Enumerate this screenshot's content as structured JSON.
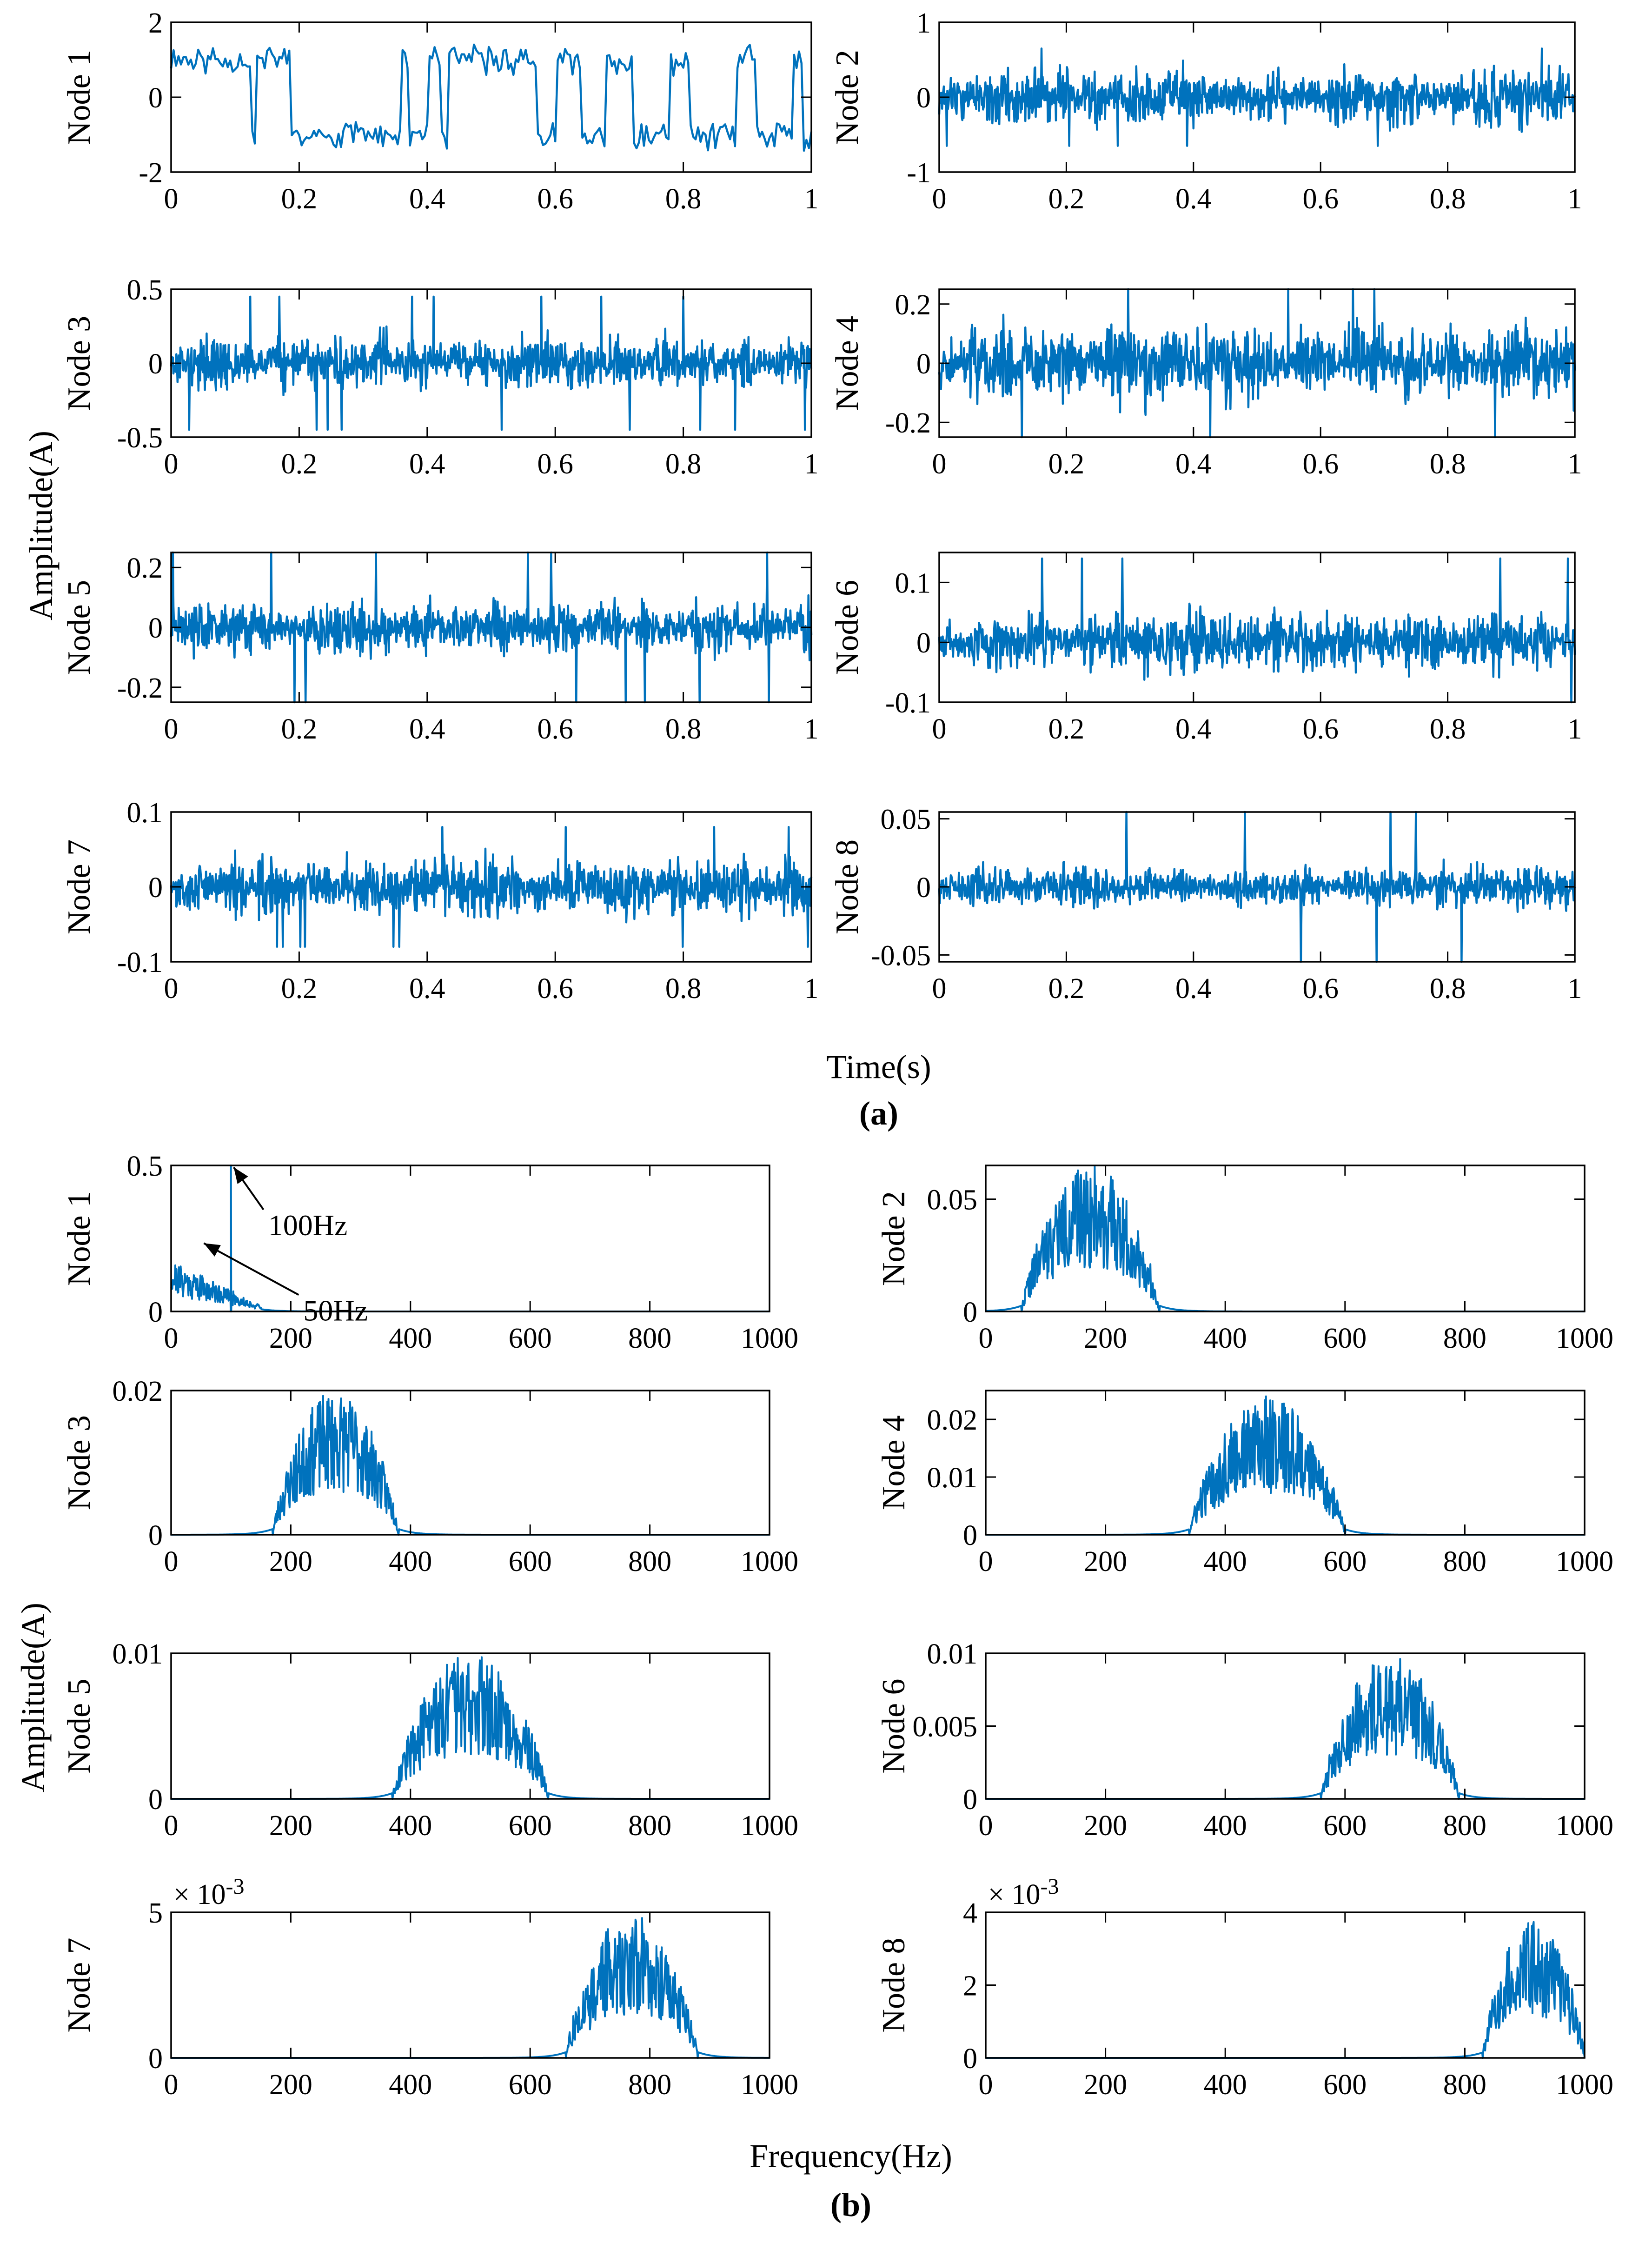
{
  "figure": {
    "time_ylabel": "Amplitude(A)",
    "time_xlabel": "Time(s)",
    "time_panel_label": "(a)",
    "freq_ylabel": "Amplitude(A)",
    "freq_xlabel": "Frequency(Hz)",
    "freq_panel_label": "(b)",
    "line_color": "#0072BD"
  },
  "chart_data": [
    {
      "type": "line",
      "panel": "a",
      "ylabel": "Node 1",
      "xlim": [
        0,
        1
      ],
      "ylim": [
        -2,
        2
      ],
      "xticks": [
        0,
        0.2,
        0.4,
        0.6,
        0.8,
        1
      ],
      "yticks": [
        -2,
        0,
        2
      ],
      "signal": {
        "kind": "time",
        "amp": 1.3,
        "mode": "square",
        "seed": 11
      }
    },
    {
      "type": "line",
      "panel": "a",
      "ylabel": "Node 2",
      "xlim": [
        0,
        1
      ],
      "ylim": [
        -1,
        1
      ],
      "xticks": [
        0,
        0.2,
        0.4,
        0.6,
        0.8,
        1
      ],
      "yticks": [
        -1,
        0,
        1
      ],
      "signal": {
        "kind": "time",
        "amp": 0.28,
        "peak": 0.65,
        "mode": "noise",
        "seed": 12
      }
    },
    {
      "type": "line",
      "panel": "a",
      "ylabel": "Node 3",
      "xlim": [
        0,
        1
      ],
      "ylim": [
        -0.5,
        0.5
      ],
      "xticks": [
        0,
        0.2,
        0.4,
        0.6,
        0.8,
        1
      ],
      "yticks": [
        -0.5,
        0,
        0.5
      ],
      "signal": {
        "kind": "time",
        "amp": 0.15,
        "peak": 0.45,
        "mode": "noise",
        "seed": 13
      }
    },
    {
      "type": "line",
      "panel": "a",
      "ylabel": "Node 4",
      "xlim": [
        0,
        1
      ],
      "ylim": [
        -0.25,
        0.25
      ],
      "xticks": [
        0,
        0.2,
        0.4,
        0.6,
        0.8,
        1
      ],
      "yticks": [
        -0.2,
        0,
        0.2
      ],
      "signal": {
        "kind": "time",
        "amp": 0.1,
        "peak": 0.25,
        "mode": "noise",
        "seed": 14
      }
    },
    {
      "type": "line",
      "panel": "a",
      "ylabel": "Node 5",
      "xlim": [
        0,
        1
      ],
      "ylim": [
        -0.25,
        0.25
      ],
      "xticks": [
        0,
        0.2,
        0.4,
        0.6,
        0.8,
        1
      ],
      "yticks": [
        -0.2,
        0,
        0.2
      ],
      "signal": {
        "kind": "time",
        "amp": 0.07,
        "peak": 0.25,
        "mode": "noise",
        "seed": 15
      }
    },
    {
      "type": "line",
      "panel": "a",
      "ylabel": "Node 6",
      "xlim": [
        0,
        1
      ],
      "ylim": [
        -0.1,
        0.15
      ],
      "xticks": [
        0,
        0.2,
        0.4,
        0.6,
        0.8,
        1
      ],
      "yticks": [
        -0.1,
        0,
        0.1
      ],
      "signal": {
        "kind": "time",
        "amp": 0.04,
        "peak": 0.14,
        "mode": "noise",
        "seed": 16
      }
    },
    {
      "type": "line",
      "panel": "a",
      "ylabel": "Node 7",
      "xlim": [
        0,
        1
      ],
      "ylim": [
        -0.1,
        0.1
      ],
      "xticks": [
        0,
        0.2,
        0.4,
        0.6,
        0.8,
        1
      ],
      "yticks": [
        -0.1,
        0,
        0.1
      ],
      "signal": {
        "kind": "time",
        "amp": 0.03,
        "peak": 0.08,
        "mode": "noise",
        "seed": 17
      }
    },
    {
      "type": "line",
      "panel": "a",
      "ylabel": "Node 8",
      "xlim": [
        0,
        1
      ],
      "ylim": [
        -0.055,
        0.055
      ],
      "xticks": [
        0,
        0.2,
        0.4,
        0.6,
        0.8,
        1
      ],
      "yticks": [
        -0.05,
        0,
        0.05
      ],
      "signal": {
        "kind": "time",
        "amp": 0.012,
        "peak": 0.055,
        "mode": "noise",
        "seed": 18
      }
    },
    {
      "type": "line",
      "panel": "b",
      "ylabel": "Node 1",
      "xlim": [
        0,
        1000
      ],
      "ylim": [
        0,
        0.5
      ],
      "xticks": [
        0,
        200,
        400,
        600,
        800,
        1000
      ],
      "yticks": [
        0,
        0.5
      ],
      "annotations": [
        {
          "text": "100Hz",
          "x": 100,
          "y": 0.5
        },
        {
          "text": "50Hz",
          "x": 50,
          "y": 0.24
        }
      ],
      "signal": {
        "kind": "freq",
        "band": [
          0,
          150
        ],
        "peak": 0.2,
        "spikes": [
          {
            "x": 100,
            "y": 0.5
          }
        ],
        "seed": 21
      }
    },
    {
      "type": "line",
      "panel": "b",
      "ylabel": "Node 2",
      "xlim": [
        0,
        1000
      ],
      "ylim": [
        0,
        0.065
      ],
      "xticks": [
        0,
        200,
        400,
        600,
        800,
        1000
      ],
      "yticks": [
        0,
        0.05
      ],
      "signal": {
        "kind": "freq",
        "band": [
          60,
          290
        ],
        "peak": 0.065,
        "seed": 22
      }
    },
    {
      "type": "line",
      "panel": "b",
      "ylabel": "Node 3",
      "xlim": [
        0,
        1000
      ],
      "ylim": [
        0,
        0.02
      ],
      "xticks": [
        0,
        200,
        400,
        600,
        800,
        1000
      ],
      "yticks": [
        0,
        0.02
      ],
      "signal": {
        "kind": "freq",
        "band": [
          170,
          380
        ],
        "peak": 0.02,
        "seed": 23
      }
    },
    {
      "type": "line",
      "panel": "b",
      "ylabel": "Node 4",
      "xlim": [
        0,
        1000
      ],
      "ylim": [
        0,
        0.025
      ],
      "xticks": [
        0,
        200,
        400,
        600,
        800,
        1000
      ],
      "yticks": [
        0,
        0.01,
        0.02
      ],
      "signal": {
        "kind": "freq",
        "band": [
          340,
          600
        ],
        "peak": 0.024,
        "seed": 24
      }
    },
    {
      "type": "line",
      "panel": "b",
      "ylabel": "Node 5",
      "xlim": [
        0,
        1000
      ],
      "ylim": [
        0,
        0.01
      ],
      "xticks": [
        0,
        200,
        400,
        600,
        800,
        1000
      ],
      "yticks": [
        0,
        0.01
      ],
      "signal": {
        "kind": "freq",
        "band": [
          370,
          630
        ],
        "peak": 0.01,
        "seed": 25
      }
    },
    {
      "type": "line",
      "panel": "b",
      "ylabel": "Node 6",
      "xlim": [
        0,
        1000
      ],
      "ylim": [
        0,
        0.01
      ],
      "xticks": [
        0,
        200,
        400,
        600,
        800,
        1000
      ],
      "yticks": [
        0,
        0.005,
        0.01
      ],
      "signal": {
        "kind": "freq",
        "band": [
          560,
          790
        ],
        "peak": 0.01,
        "seed": 26
      }
    },
    {
      "type": "line",
      "panel": "b",
      "ylabel": "Node 7",
      "xlim": [
        0,
        1000
      ],
      "ylim": [
        0,
        5
      ],
      "xticks": [
        0,
        200,
        400,
        600,
        800,
        1000
      ],
      "yticks": [
        0,
        5
      ],
      "multiplier": "× 10",
      "multiplier_exp": "-3",
      "signal": {
        "kind": "freq",
        "band": [
          660,
          880
        ],
        "peak": 5,
        "seed": 27
      }
    },
    {
      "type": "line",
      "panel": "b",
      "ylabel": "Node 8",
      "xlim": [
        0,
        1000
      ],
      "ylim": [
        0,
        4
      ],
      "xticks": [
        0,
        200,
        400,
        600,
        800,
        1000
      ],
      "yticks": [
        0,
        2,
        4
      ],
      "multiplier": "× 10",
      "multiplier_exp": "-3",
      "signal": {
        "kind": "freq",
        "band": [
          830,
          1000
        ],
        "peak": 3.8,
        "seed": 28
      }
    }
  ]
}
